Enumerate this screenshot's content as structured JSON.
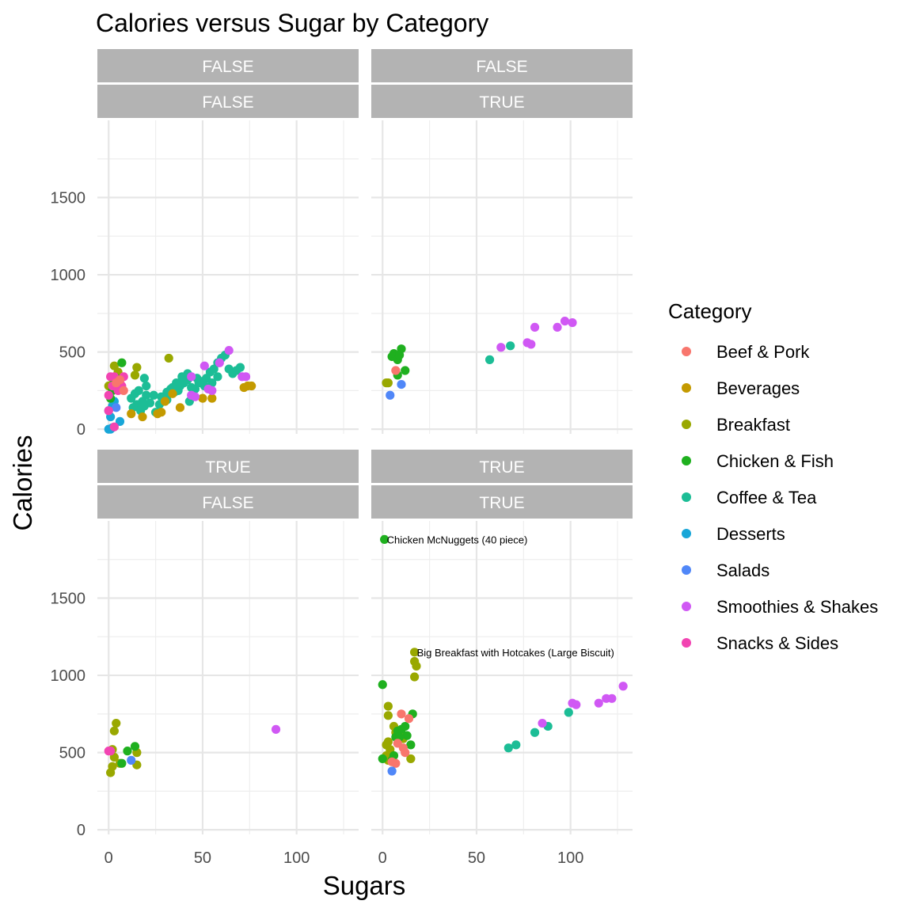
{
  "chart_data": {
    "type": "scatter",
    "title": "Calories versus Sugar by Category",
    "xlabel": "Sugars",
    "ylabel": "Calories",
    "xlim": [
      -6,
      133
    ],
    "ylim": [
      -30,
      2000
    ],
    "x_ticks": [
      0,
      50,
      100
    ],
    "y_ticks": [
      0,
      500,
      1000,
      1500
    ],
    "grid": true,
    "legend_position": "right",
    "legend_title": "Category",
    "categories": [
      {
        "name": "Beef & Pork",
        "color": "#F8766D"
      },
      {
        "name": "Beverages",
        "color": "#C49A00"
      },
      {
        "name": "Breakfast",
        "color": "#99A800"
      },
      {
        "name": "Chicken & Fish",
        "color": "#1FB01F"
      },
      {
        "name": "Coffee & Tea",
        "color": "#1CBD96"
      },
      {
        "name": "Desserts",
        "color": "#18A6D8"
      },
      {
        "name": "Salads",
        "color": "#5087F8"
      },
      {
        "name": "Smoothies & Shakes",
        "color": "#D058F4"
      },
      {
        "name": "Snacks & Sides",
        "color": "#F244B2"
      }
    ],
    "panels": [
      {
        "strip_top": "FALSE",
        "strip_bottom": "FALSE",
        "points": [
          [
            0,
            0,
            5
          ],
          [
            1,
            0,
            5
          ],
          [
            2,
            10,
            5
          ],
          [
            0,
            120,
            5
          ],
          [
            2,
            150,
            5
          ],
          [
            3,
            180,
            5
          ],
          [
            1,
            80,
            5
          ],
          [
            6,
            50,
            5
          ],
          [
            4,
            140,
            6
          ],
          [
            0,
            280,
            2
          ],
          [
            2,
            330,
            2
          ],
          [
            5,
            370,
            2
          ],
          [
            3,
            410,
            2
          ],
          [
            14,
            350,
            2
          ],
          [
            15,
            400,
            2
          ],
          [
            32,
            460,
            2
          ],
          [
            1,
            200,
            3
          ],
          [
            2,
            250,
            3
          ],
          [
            7,
            430,
            3
          ],
          [
            4,
            330,
            3
          ],
          [
            3,
            300,
            3
          ],
          [
            0,
            120,
            8
          ],
          [
            1,
            340,
            8
          ],
          [
            3,
            340,
            8
          ],
          [
            5,
            250,
            8
          ],
          [
            2,
            280,
            8
          ],
          [
            6,
            300,
            8
          ],
          [
            8,
            340,
            8
          ],
          [
            3,
            15,
            8
          ],
          [
            0,
            220,
            8
          ],
          [
            7,
            280,
            8
          ],
          [
            4,
            300,
            0
          ],
          [
            6,
            320,
            0
          ],
          [
            8,
            250,
            0
          ],
          [
            12,
            200,
            4
          ],
          [
            14,
            230,
            4
          ],
          [
            16,
            250,
            4
          ],
          [
            18,
            180,
            4
          ],
          [
            20,
            220,
            4
          ],
          [
            22,
            170,
            4
          ],
          [
            15,
            160,
            4
          ],
          [
            13,
            140,
            4
          ],
          [
            17,
            120,
            4
          ],
          [
            19,
            150,
            4
          ],
          [
            20,
            280,
            4
          ],
          [
            19,
            330,
            4
          ],
          [
            25,
            110,
            4
          ],
          [
            27,
            160,
            4
          ],
          [
            29,
            180,
            4
          ],
          [
            31,
            190,
            4
          ],
          [
            33,
            260,
            4
          ],
          [
            35,
            240,
            4
          ],
          [
            37,
            250,
            4
          ],
          [
            38,
            280,
            4
          ],
          [
            40,
            300,
            4
          ],
          [
            42,
            320,
            4
          ],
          [
            44,
            270,
            4
          ],
          [
            46,
            260,
            4
          ],
          [
            43,
            180,
            4
          ],
          [
            45,
            220,
            4
          ],
          [
            48,
            300,
            4
          ],
          [
            50,
            310,
            4
          ],
          [
            52,
            330,
            4
          ],
          [
            54,
            370,
            4
          ],
          [
            56,
            390,
            4
          ],
          [
            58,
            430,
            4
          ],
          [
            60,
            460,
            4
          ],
          [
            62,
            480,
            4
          ],
          [
            64,
            390,
            4
          ],
          [
            66,
            360,
            4
          ],
          [
            68,
            380,
            4
          ],
          [
            70,
            400,
            4
          ],
          [
            58,
            340,
            4
          ],
          [
            55,
            300,
            4
          ],
          [
            51,
            280,
            4
          ],
          [
            47,
            330,
            4
          ],
          [
            42,
            360,
            4
          ],
          [
            39,
            340,
            4
          ],
          [
            36,
            300,
            4
          ],
          [
            34,
            270,
            4
          ],
          [
            31,
            240,
            4
          ],
          [
            28,
            210,
            4
          ],
          [
            24,
            220,
            4
          ],
          [
            12,
            100,
            1
          ],
          [
            18,
            80,
            1
          ],
          [
            26,
            100,
            1
          ],
          [
            28,
            110,
            1
          ],
          [
            30,
            180,
            1
          ],
          [
            38,
            140,
            1
          ],
          [
            50,
            200,
            1
          ],
          [
            55,
            200,
            1
          ],
          [
            72,
            270,
            1
          ],
          [
            74,
            280,
            1
          ],
          [
            76,
            280,
            1
          ],
          [
            34,
            230,
            1
          ],
          [
            44,
            340,
            7
          ],
          [
            46,
            210,
            7
          ],
          [
            51,
            410,
            7
          ],
          [
            53,
            260,
            7
          ],
          [
            55,
            250,
            7
          ],
          [
            59,
            430,
            7
          ],
          [
            64,
            510,
            7
          ],
          [
            71,
            340,
            7
          ],
          [
            73,
            340,
            7
          ],
          [
            44,
            220,
            7
          ]
        ],
        "annotations": []
      },
      {
        "strip_top": "FALSE",
        "strip_bottom": "TRUE",
        "points": [
          [
            2,
            300,
            2
          ],
          [
            3,
            300,
            2
          ],
          [
            5,
            470,
            3
          ],
          [
            6,
            490,
            3
          ],
          [
            8,
            450,
            3
          ],
          [
            10,
            520,
            3
          ],
          [
            12,
            380,
            3
          ],
          [
            8,
            350,
            3
          ],
          [
            9,
            480,
            3
          ],
          [
            7,
            380,
            0
          ],
          [
            4,
            220,
            6
          ],
          [
            10,
            290,
            6
          ],
          [
            57,
            450,
            4
          ],
          [
            68,
            540,
            4
          ],
          [
            63,
            530,
            7
          ],
          [
            77,
            560,
            7
          ],
          [
            79,
            550,
            7
          ],
          [
            81,
            660,
            7
          ],
          [
            93,
            660,
            7
          ],
          [
            97,
            700,
            7
          ],
          [
            101,
            690,
            7
          ]
        ],
        "annotations": []
      },
      {
        "strip_top": "TRUE",
        "strip_bottom": "FALSE",
        "points": [
          [
            1,
            370,
            2
          ],
          [
            2,
            410,
            2
          ],
          [
            3,
            470,
            2
          ],
          [
            2,
            520,
            2
          ],
          [
            3,
            640,
            2
          ],
          [
            4,
            690,
            2
          ],
          [
            6,
            430,
            2
          ],
          [
            15,
            500,
            2
          ],
          [
            15,
            420,
            2
          ],
          [
            10,
            510,
            3
          ],
          [
            14,
            540,
            3
          ],
          [
            7,
            430,
            3
          ],
          [
            12,
            450,
            6
          ],
          [
            0,
            510,
            8
          ],
          [
            1,
            510,
            8
          ],
          [
            89,
            650,
            7
          ]
        ],
        "annotations": []
      },
      {
        "strip_top": "TRUE",
        "strip_bottom": "TRUE",
        "points": [
          [
            1,
            1880,
            3
          ],
          [
            0,
            940,
            3
          ],
          [
            17,
            1150,
            2
          ],
          [
            17,
            1090,
            2
          ],
          [
            18,
            1060,
            2
          ],
          [
            17,
            990,
            2
          ],
          [
            3,
            800,
            2
          ],
          [
            3,
            740,
            2
          ],
          [
            6,
            670,
            2
          ],
          [
            3,
            570,
            2
          ],
          [
            2,
            550,
            2
          ],
          [
            4,
            520,
            2
          ],
          [
            2,
            480,
            2
          ],
          [
            3,
            450,
            2
          ],
          [
            15,
            460,
            2
          ],
          [
            7,
            630,
            2
          ],
          [
            9,
            610,
            2
          ],
          [
            11,
            590,
            2
          ],
          [
            6,
            480,
            3
          ],
          [
            7,
            600,
            3
          ],
          [
            8,
            640,
            3
          ],
          [
            10,
            650,
            3
          ],
          [
            12,
            670,
            3
          ],
          [
            16,
            750,
            3
          ],
          [
            13,
            610,
            3
          ],
          [
            15,
            550,
            3
          ],
          [
            5,
            450,
            3
          ],
          [
            0,
            460,
            3
          ],
          [
            9,
            600,
            3
          ],
          [
            10,
            750,
            0
          ],
          [
            14,
            720,
            0
          ],
          [
            11,
            530,
            0
          ],
          [
            12,
            500,
            0
          ],
          [
            8,
            560,
            0
          ],
          [
            7,
            430,
            0
          ],
          [
            5,
            440,
            0
          ],
          [
            5,
            380,
            6
          ],
          [
            67,
            530,
            4
          ],
          [
            71,
            550,
            4
          ],
          [
            81,
            630,
            4
          ],
          [
            88,
            670,
            4
          ],
          [
            99,
            760,
            4
          ],
          [
            85,
            690,
            7
          ],
          [
            101,
            820,
            7
          ],
          [
            103,
            810,
            7
          ],
          [
            115,
            820,
            7
          ],
          [
            119,
            850,
            7
          ],
          [
            122,
            850,
            7
          ],
          [
            128,
            930,
            7
          ]
        ],
        "annotations": [
          {
            "x": 1,
            "y": 1880,
            "label": "Chicken McNuggets (40 piece)"
          },
          {
            "x": 17,
            "y": 1150,
            "label": "Big Breakfast with Hotcakes (Large Biscuit)"
          }
        ]
      }
    ]
  }
}
